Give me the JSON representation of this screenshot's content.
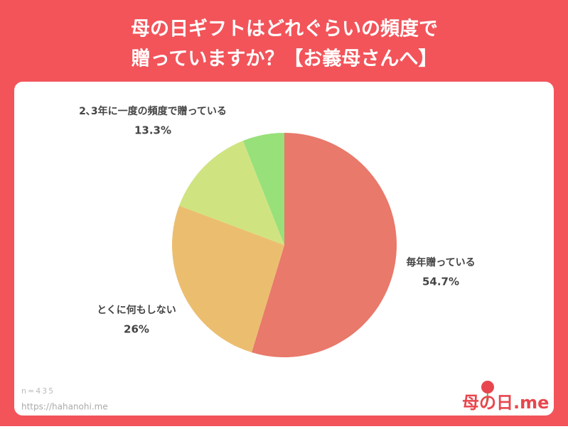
{
  "chart_data": {
    "type": "pie",
    "title": [
      "母の日ギフトはどれぐらいの頻度で",
      "贈っていますか？【お義母さんへ】"
    ],
    "categories": [
      "毎年贈っている",
      "とくに何もしない",
      "2､3年に一度の頻度で贈っている",
      null
    ],
    "values": [
      54.7,
      26,
      13.3,
      6
    ],
    "value_labels": [
      "54.7%",
      "26%",
      "13.3%",
      null
    ],
    "colors": [
      "#e8796b",
      "#ebbe6f",
      "#cfe480",
      "#98e07a"
    ]
  },
  "footer": {
    "sample": "n=435",
    "url": "https://hahanohi.me",
    "logo": "母の日.me"
  }
}
